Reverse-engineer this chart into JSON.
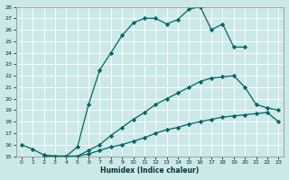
{
  "title": "",
  "xlabel": "Humidex (Indice chaleur)",
  "ylabel": "",
  "background_color": "#cce8e8",
  "grid_color": "#b0d4d4",
  "line_color": "#006666",
  "xlim": [
    -0.5,
    23.5
  ],
  "ylim": [
    15,
    28
  ],
  "xtick_labels": [
    "0",
    "1",
    "2",
    "3",
    "4",
    "5",
    "6",
    "7",
    "8",
    "9",
    "10",
    "11",
    "12",
    "13",
    "14",
    "15",
    "16",
    "17",
    "18",
    "19",
    "20",
    "21",
    "22",
    "23"
  ],
  "xtick_vals": [
    0,
    1,
    2,
    3,
    4,
    5,
    6,
    7,
    8,
    9,
    10,
    11,
    12,
    13,
    14,
    15,
    16,
    17,
    18,
    19,
    20,
    21,
    22,
    23
  ],
  "ytick_vals": [
    15,
    16,
    17,
    18,
    19,
    20,
    21,
    22,
    23,
    24,
    25,
    26,
    27,
    28
  ],
  "series": [
    {
      "x": [
        0,
        1,
        2,
        3,
        4,
        5,
        6,
        7,
        8,
        9,
        10,
        11,
        12,
        13,
        14,
        15,
        16,
        17,
        18,
        19,
        20
      ],
      "y": [
        16,
        15.6,
        15.1,
        15.0,
        15.0,
        15.8,
        19.5,
        22.5,
        24.0,
        25.5,
        26.6,
        27.0,
        27.0,
        26.5,
        26.9,
        27.8,
        28.0,
        26.0,
        26.5,
        24.5,
        24.5
      ]
    },
    {
      "x": [
        2,
        3,
        4,
        5,
        6,
        7,
        8,
        9,
        10,
        11,
        12,
        13,
        14,
        15,
        16,
        17,
        18,
        19,
        20,
        21,
        22,
        23
      ],
      "y": [
        15.0,
        15.0,
        15.0,
        15.0,
        15.5,
        16.0,
        16.8,
        17.5,
        18.2,
        18.8,
        19.5,
        20.0,
        20.5,
        21.0,
        21.5,
        21.8,
        21.9,
        22.0,
        21.0,
        19.5,
        19.2,
        19.0
      ]
    },
    {
      "x": [
        2,
        3,
        4,
        5,
        6,
        7,
        8,
        9,
        10,
        11,
        12,
        13,
        14,
        15,
        16,
        17,
        18,
        19,
        20,
        21,
        22,
        23
      ],
      "y": [
        15.0,
        15.0,
        15.0,
        15.0,
        15.2,
        15.5,
        15.8,
        16.0,
        16.3,
        16.6,
        17.0,
        17.3,
        17.5,
        17.8,
        18.0,
        18.2,
        18.4,
        18.5,
        18.6,
        18.7,
        18.8,
        18.0
      ]
    }
  ],
  "marker": "D",
  "markersize": 2.2,
  "linewidth": 0.9
}
